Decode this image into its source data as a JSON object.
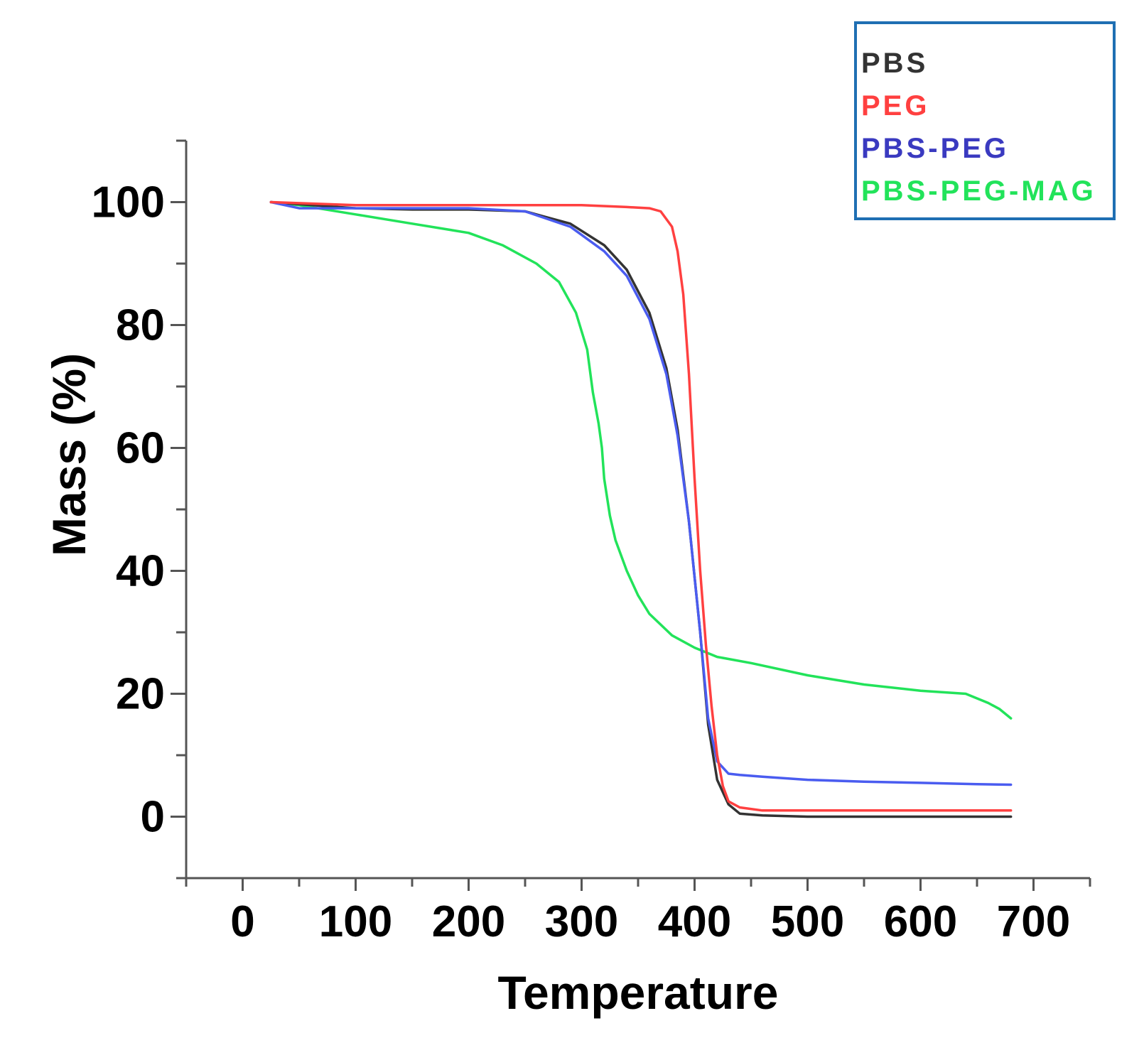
{
  "chart_data": {
    "type": "line",
    "title": "",
    "xlabel": "Temperature",
    "ylabel": "Mass (%)",
    "xlim": [
      -50,
      750
    ],
    "ylim": [
      -10,
      110
    ],
    "xticks": [
      0,
      100,
      200,
      300,
      400,
      500,
      600,
      700
    ],
    "yticks": [
      0,
      20,
      40,
      60,
      80,
      100
    ],
    "xtick_labels": [
      "0",
      "100",
      "200",
      "300",
      "400",
      "500",
      "600",
      "700"
    ],
    "ytick_labels": [
      "0",
      "20",
      "40",
      "60",
      "80",
      "100"
    ],
    "grid": false,
    "legend_position": "top-right",
    "legend_border_color": "#1f6fb3",
    "series": [
      {
        "name": "PBS",
        "color": "#333333",
        "x": [
          25,
          100,
          150,
          200,
          250,
          290,
          320,
          340,
          360,
          375,
          385,
          395,
          405,
          412,
          420,
          430,
          440,
          460,
          500,
          600,
          680
        ],
        "y": [
          100,
          99,
          98.8,
          98.8,
          98.5,
          96.5,
          93,
          89,
          82,
          73,
          63,
          48,
          30,
          15,
          6,
          2,
          0.5,
          0.2,
          0,
          0,
          0
        ]
      },
      {
        "name": "PEG",
        "color": "#ff4040",
        "x": [
          25,
          100,
          200,
          300,
          340,
          360,
          370,
          380,
          385,
          390,
          395,
          400,
          405,
          410,
          415,
          420,
          425,
          430,
          440,
          460,
          500,
          600,
          680
        ],
        "y": [
          100,
          99.5,
          99.5,
          99.5,
          99.2,
          99,
          98.5,
          96,
          92,
          85,
          72,
          55,
          40,
          28,
          18,
          10,
          5,
          2.5,
          1.5,
          1,
          1,
          1,
          1
        ]
      },
      {
        "name": "PBS-PEG",
        "color": "#4a5cf0",
        "x": [
          25,
          50,
          100,
          150,
          200,
          250,
          290,
          320,
          340,
          360,
          375,
          385,
          395,
          405,
          412,
          420,
          430,
          440,
          460,
          500,
          550,
          600,
          650,
          680
        ],
        "y": [
          100,
          99,
          99,
          99,
          99,
          98.5,
          96,
          92,
          88,
          81,
          72,
          62,
          48,
          30,
          16,
          9,
          7,
          6.8,
          6.5,
          6,
          5.7,
          5.5,
          5.3,
          5.2
        ]
      },
      {
        "name": "PBS-PEG-MAG",
        "color": "#22e35a",
        "x": [
          25,
          50,
          100,
          150,
          200,
          230,
          260,
          280,
          295,
          305,
          310,
          315,
          318,
          320,
          325,
          330,
          340,
          350,
          360,
          380,
          400,
          420,
          450,
          500,
          550,
          600,
          640,
          660,
          670,
          680
        ],
        "y": [
          100,
          99.5,
          98,
          96.5,
          95,
          93,
          90,
          87,
          82,
          76,
          69,
          64,
          60,
          55,
          49,
          45,
          40,
          36,
          33,
          29.5,
          27.5,
          26,
          25,
          23,
          21.5,
          20.5,
          20,
          18.5,
          17.5,
          16
        ]
      }
    ]
  }
}
